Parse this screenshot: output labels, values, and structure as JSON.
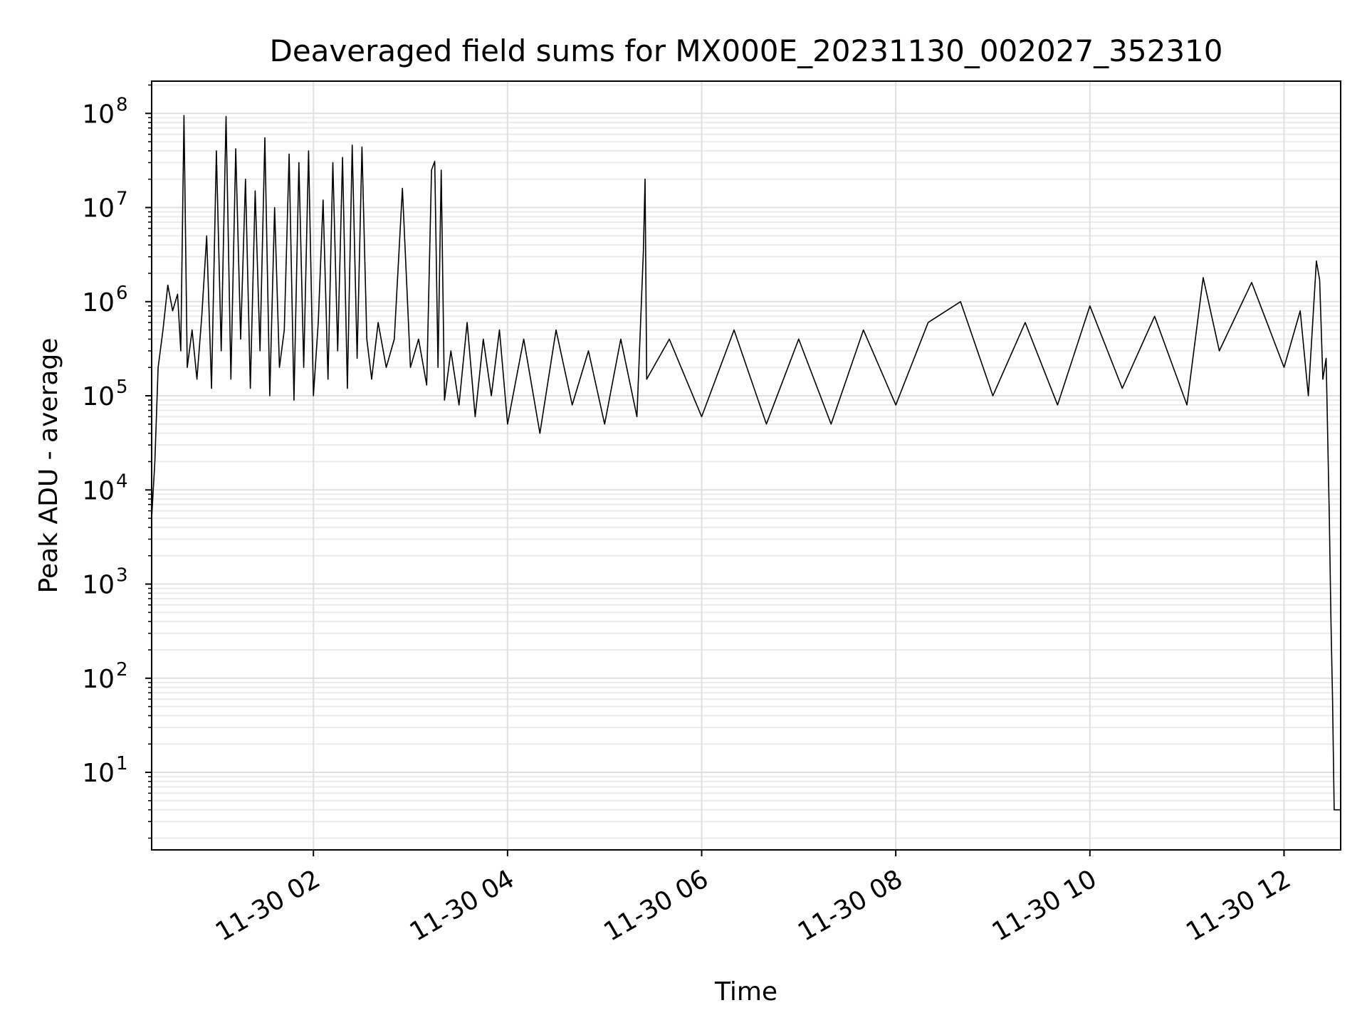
{
  "chart_data": {
    "type": "line",
    "title": "Deaveraged field sums for MX000E_20231130_002027_352310",
    "xlabel": "Time",
    "ylabel": "Peak ADU - average",
    "y_scale": "log",
    "ylim": [
      1.5,
      220000000
    ],
    "xlim": [
      "2023-11-30 00:20",
      "2023-11-30 12:35"
    ],
    "grid": "major and minor, light gray",
    "x_tick_labels": [
      "11-30 02",
      "11-30 04",
      "11-30 06",
      "11-30 08",
      "11-30 10",
      "11-30 12"
    ],
    "x_ticks": [
      "2023-11-30 02:00",
      "2023-11-30 04:00",
      "2023-11-30 06:00",
      "2023-11-30 08:00",
      "2023-11-30 10:00",
      "2023-11-30 12:00"
    ],
    "y_ticks": [
      10,
      100,
      1000,
      10000,
      100000,
      1000000,
      10000000,
      100000000
    ],
    "y_tick_labels": [
      {
        "base": "10",
        "exp": "1"
      },
      {
        "base": "10",
        "exp": "2"
      },
      {
        "base": "10",
        "exp": "3"
      },
      {
        "base": "10",
        "exp": "4"
      },
      {
        "base": "10",
        "exp": "5"
      },
      {
        "base": "10",
        "exp": "6"
      },
      {
        "base": "10",
        "exp": "7"
      },
      {
        "base": "10",
        "exp": "8"
      }
    ],
    "series": [
      {
        "color": "#000000",
        "points": [
          [
            "2023-11-30 00:20",
            5000
          ],
          [
            "2023-11-30 00:22",
            20000
          ],
          [
            "2023-11-30 00:24",
            200000
          ],
          [
            "2023-11-30 00:27",
            500000
          ],
          [
            "2023-11-30 00:30",
            1500000
          ],
          [
            "2023-11-30 00:33",
            800000
          ],
          [
            "2023-11-30 00:36",
            1200000
          ],
          [
            "2023-11-30 00:38",
            300000
          ],
          [
            "2023-11-30 00:40",
            95000000
          ],
          [
            "2023-11-30 00:42",
            200000
          ],
          [
            "2023-11-30 00:45",
            500000
          ],
          [
            "2023-11-30 00:48",
            150000
          ],
          [
            "2023-11-30 00:51",
            700000
          ],
          [
            "2023-11-30 00:54",
            5000000
          ],
          [
            "2023-11-30 00:57",
            120000
          ],
          [
            "2023-11-30 01:00",
            40000000
          ],
          [
            "2023-11-30 01:03",
            300000
          ],
          [
            "2023-11-30 01:06",
            93000000
          ],
          [
            "2023-11-30 01:09",
            150000
          ],
          [
            "2023-11-30 01:12",
            42000000
          ],
          [
            "2023-11-30 01:15",
            400000
          ],
          [
            "2023-11-30 01:18",
            20000000
          ],
          [
            "2023-11-30 01:21",
            120000
          ],
          [
            "2023-11-30 01:24",
            15000000
          ],
          [
            "2023-11-30 01:27",
            300000
          ],
          [
            "2023-11-30 01:30",
            55000000
          ],
          [
            "2023-11-30 01:33",
            100000
          ],
          [
            "2023-11-30 01:36",
            10000000
          ],
          [
            "2023-11-30 01:39",
            200000
          ],
          [
            "2023-11-30 01:42",
            500000
          ],
          [
            "2023-11-30 01:45",
            37000000
          ],
          [
            "2023-11-30 01:48",
            90000
          ],
          [
            "2023-11-30 01:51",
            30000000
          ],
          [
            "2023-11-30 01:54",
            200000
          ],
          [
            "2023-11-30 01:57",
            40000000
          ],
          [
            "2023-11-30 02:00",
            100000
          ],
          [
            "2023-11-30 02:03",
            600000
          ],
          [
            "2023-11-30 02:06",
            12000000
          ],
          [
            "2023-11-30 02:09",
            150000
          ],
          [
            "2023-11-30 02:12",
            30000000
          ],
          [
            "2023-11-30 02:15",
            300000
          ],
          [
            "2023-11-30 02:18",
            34000000
          ],
          [
            "2023-11-30 02:21",
            120000
          ],
          [
            "2023-11-30 02:24",
            46000000
          ],
          [
            "2023-11-30 02:27",
            250000
          ],
          [
            "2023-11-30 02:30",
            44000000
          ],
          [
            "2023-11-30 02:33",
            400000
          ],
          [
            "2023-11-30 02:36",
            150000
          ],
          [
            "2023-11-30 02:40",
            600000
          ],
          [
            "2023-11-30 02:45",
            200000
          ],
          [
            "2023-11-30 02:50",
            400000
          ],
          [
            "2023-11-30 02:55",
            16000000
          ],
          [
            "2023-11-30 03:00",
            200000
          ],
          [
            "2023-11-30 03:05",
            400000
          ],
          [
            "2023-11-30 03:10",
            130000
          ],
          [
            "2023-11-30 03:13",
            25000000
          ],
          [
            "2023-11-30 03:15",
            31000000
          ],
          [
            "2023-11-30 03:17",
            200000
          ],
          [
            "2023-11-30 03:19",
            25000000
          ],
          [
            "2023-11-30 03:21",
            90000
          ],
          [
            "2023-11-30 03:25",
            300000
          ],
          [
            "2023-11-30 03:30",
            80000
          ],
          [
            "2023-11-30 03:35",
            600000
          ],
          [
            "2023-11-30 03:40",
            60000
          ],
          [
            "2023-11-30 03:45",
            400000
          ],
          [
            "2023-11-30 03:50",
            100000
          ],
          [
            "2023-11-30 03:55",
            500000
          ],
          [
            "2023-11-30 04:00",
            50000
          ],
          [
            "2023-11-30 04:10",
            400000
          ],
          [
            "2023-11-30 04:20",
            40000
          ],
          [
            "2023-11-30 04:30",
            500000
          ],
          [
            "2023-11-30 04:40",
            80000
          ],
          [
            "2023-11-30 04:50",
            300000
          ],
          [
            "2023-11-30 05:00",
            50000
          ],
          [
            "2023-11-30 05:10",
            400000
          ],
          [
            "2023-11-30 05:20",
            60000
          ],
          [
            "2023-11-30 05:24",
            3500000
          ],
          [
            "2023-11-30 05:25",
            20000000
          ],
          [
            "2023-11-30 05:26",
            150000
          ],
          [
            "2023-11-30 05:40",
            400000
          ],
          [
            "2023-11-30 06:00",
            60000
          ],
          [
            "2023-11-30 06:20",
            500000
          ],
          [
            "2023-11-30 06:40",
            50000
          ],
          [
            "2023-11-30 07:00",
            400000
          ],
          [
            "2023-11-30 07:20",
            50000
          ],
          [
            "2023-11-30 07:40",
            500000
          ],
          [
            "2023-11-30 08:00",
            80000
          ],
          [
            "2023-11-30 08:20",
            600000
          ],
          [
            "2023-11-30 08:40",
            1000000
          ],
          [
            "2023-11-30 09:00",
            100000
          ],
          [
            "2023-11-30 09:20",
            600000
          ],
          [
            "2023-11-30 09:40",
            80000
          ],
          [
            "2023-11-30 10:00",
            900000
          ],
          [
            "2023-11-30 10:20",
            120000
          ],
          [
            "2023-11-30 10:40",
            700000
          ],
          [
            "2023-11-30 11:00",
            80000
          ],
          [
            "2023-11-30 11:10",
            1800000
          ],
          [
            "2023-11-30 11:20",
            300000
          ],
          [
            "2023-11-30 11:40",
            1600000
          ],
          [
            "2023-11-30 12:00",
            200000
          ],
          [
            "2023-11-30 12:10",
            800000
          ],
          [
            "2023-11-30 12:15",
            100000
          ],
          [
            "2023-11-30 12:20",
            2700000
          ],
          [
            "2023-11-30 12:22",
            1700000
          ],
          [
            "2023-11-30 12:24",
            150000
          ],
          [
            "2023-11-30 12:26",
            250000
          ],
          [
            "2023-11-30 12:28",
            5000
          ],
          [
            "2023-11-30 12:29",
            400
          ],
          [
            "2023-11-30 12:30",
            60
          ],
          [
            "2023-11-30 12:31",
            4
          ],
          [
            "2023-11-30 12:35",
            4
          ]
        ]
      }
    ]
  }
}
